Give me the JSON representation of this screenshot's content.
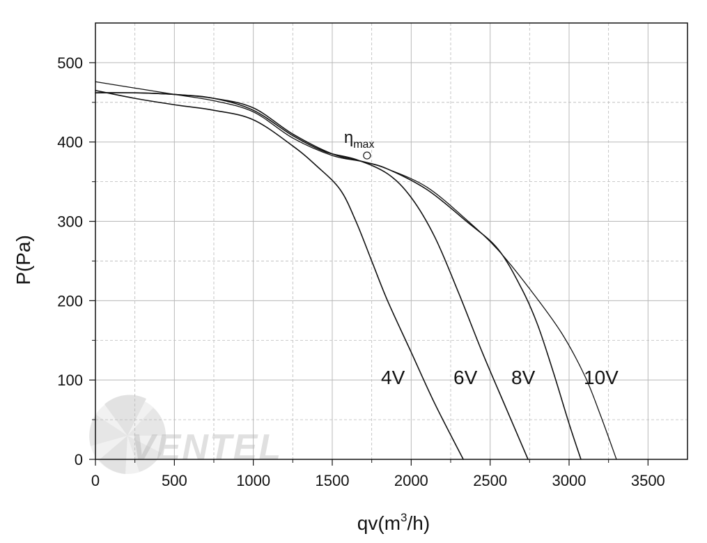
{
  "chart_data": {
    "type": "line",
    "title": "",
    "xlabel": "qv(m",
    "xlabel_sup": "3",
    "xlabel_suffix": "/h)",
    "ylabel": "P(Pa)",
    "xlim": [
      0,
      3750
    ],
    "ylim": [
      0,
      550
    ],
    "x_ticks": [
      0,
      500,
      1000,
      1500,
      2000,
      2500,
      3000,
      3500
    ],
    "y_ticks": [
      0,
      100,
      200,
      300,
      400,
      500
    ],
    "x_tick_labels": [
      "0",
      "500",
      "1000",
      "1500",
      "2000",
      "2500",
      "3000",
      "3500"
    ],
    "y_tick_labels": [
      "0",
      "100",
      "200",
      "300",
      "400",
      "500"
    ],
    "grid": true,
    "watermark": "VENTEL",
    "series": [
      {
        "name": "4V",
        "x": [
          0,
          250,
          500,
          750,
          1000,
          1250,
          1400,
          1550,
          1650,
          1750,
          1850,
          2000,
          2150,
          2330
        ],
        "y": [
          465,
          455,
          447,
          440,
          428,
          395,
          370,
          340,
          300,
          250,
          200,
          135,
          70,
          0
        ]
      },
      {
        "name": "6V",
        "x": [
          0,
          250,
          500,
          750,
          1000,
          1250,
          1450,
          1650,
          1850,
          2000,
          2150,
          2300,
          2450,
          2600,
          2740
        ],
        "y": [
          462,
          462,
          460,
          455,
          440,
          408,
          388,
          378,
          360,
          330,
          280,
          210,
          135,
          65,
          0
        ]
      },
      {
        "name": "8V",
        "x": [
          0,
          250,
          500,
          750,
          1000,
          1250,
          1500,
          1700,
          1850,
          2100,
          2350,
          2550,
          2700,
          2800,
          2900,
          3000,
          3075
        ],
        "y": [
          462,
          462,
          460,
          455,
          443,
          410,
          385,
          375,
          366,
          340,
          300,
          265,
          215,
          170,
          110,
          45,
          0
        ]
      },
      {
        "name": "10V",
        "x": [
          0,
          250,
          500,
          750,
          1000,
          1250,
          1500,
          1700,
          1850,
          2100,
          2350,
          2550,
          2750,
          2950,
          3100,
          3200,
          3300
        ],
        "y": [
          476,
          468,
          460,
          452,
          438,
          405,
          383,
          375,
          366,
          343,
          302,
          264,
          215,
          160,
          105,
          55,
          0
        ]
      }
    ],
    "annotations": [
      {
        "text": "η",
        "sub": "max",
        "x": 1720,
        "y": 383
      }
    ]
  },
  "colors": {
    "curve": "#111111",
    "grid": "#b8b8b8",
    "axis": "#111111",
    "watermark": "#9a9a9a"
  }
}
